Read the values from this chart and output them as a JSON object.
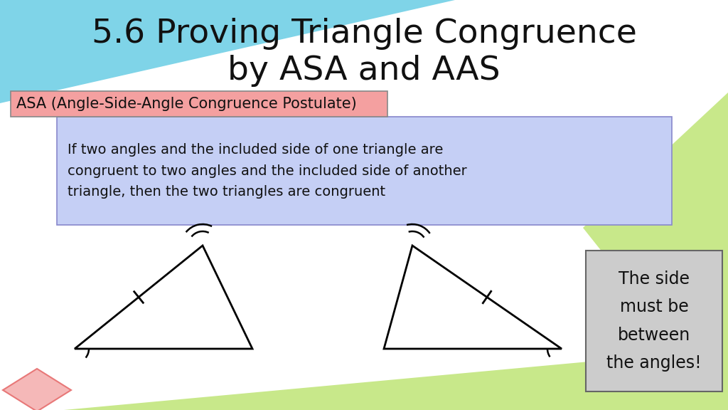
{
  "title_line1": "5.6 Proving Triangle Congruence",
  "title_line2": "by ASA and AAS",
  "bg_color": "#ffffff",
  "asa_label": "ASA (Angle-Side-Angle Congruence Postulate)",
  "asa_bg": "#f4a0a0",
  "def_text": "If two angles and the included side of one triangle are\ncongruent to two angles and the included side of another\ntriangle, then the two triangles are congruent",
  "def_bg": "#c5cff5",
  "side_note": "The side\nmust be\nbetween\nthe angles!",
  "side_note_bg": "#cccccc",
  "cyan_color": "#7fd4e8",
  "green_color": "#c8e88a",
  "red_color": "#e87878",
  "red_light": "#f5b8b8",
  "title_fontsize": 34,
  "asa_fontsize": 15,
  "def_fontsize": 14,
  "side_fontsize": 17
}
